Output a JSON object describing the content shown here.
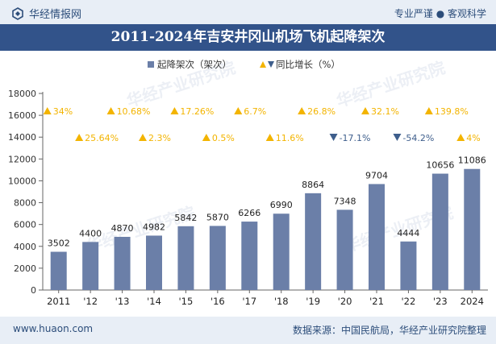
{
  "header": {
    "brand": "华经情报网",
    "tagline": "专业严谨 ● 客观科学"
  },
  "footer": {
    "url": "www.huaon.com",
    "source": "数据来源：中国民航局，华经产业研究院整理"
  },
  "watermark": "华经产业研究院",
  "colors": {
    "bar": "#6b7fa8",
    "up": "#f3b400",
    "down": "#3e5e8c",
    "title_bg": "#32538a"
  },
  "chart_data": {
    "type": "bar",
    "title": "2011-2024年吉安井冈山机场飞机起降架次",
    "categories": [
      "2011",
      "'12",
      "'13",
      "'14",
      "'15",
      "'16",
      "'17",
      "'18",
      "'19",
      "'20",
      "'21",
      "'22",
      "'23",
      "2024"
    ],
    "series": [
      {
        "name": "起降架次（架次）",
        "values": [
          3502,
          4400,
          4870,
          4982,
          5842,
          5870,
          6266,
          6990,
          8864,
          7348,
          9704,
          4444,
          10656,
          11086
        ]
      },
      {
        "name": "同比增长（%）",
        "values": [
          34,
          25.64,
          10.68,
          2.3,
          17.26,
          0.5,
          6.7,
          11.6,
          26.8,
          -17.1,
          32.1,
          -54.2,
          139.8,
          4
        ],
        "labels": [
          "34%",
          "25.64%",
          "10.68%",
          "2.3%",
          "17.26%",
          "0.5%",
          "6.7%",
          "11.6%",
          "26.8%",
          "-17.1%",
          "32.1%",
          "-54.2%",
          "139.8%",
          "4%"
        ]
      }
    ],
    "ylim": [
      0,
      18000
    ],
    "yticks": [
      0,
      2000,
      4000,
      6000,
      8000,
      10000,
      12000,
      14000,
      16000,
      18000
    ],
    "ytick_labels": [
      "0",
      "2000",
      "4000",
      "6000",
      "8000",
      "10000",
      "12000",
      "14000",
      "16000",
      "18000"
    ],
    "legend_position": "top-right",
    "grid": false
  }
}
